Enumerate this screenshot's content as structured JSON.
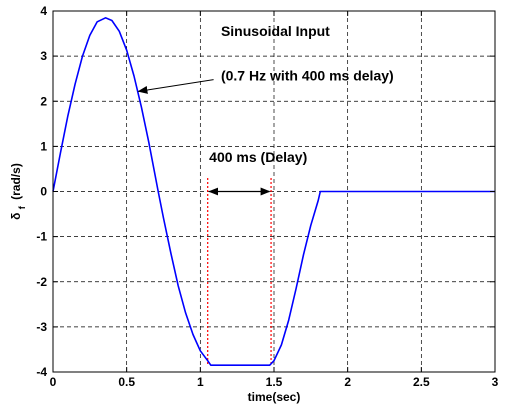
{
  "chart_data": {
    "type": "line",
    "title": "",
    "xlabel": "time(sec)",
    "ylabel_main": "δ",
    "ylabel_sub": "f",
    "ylabel_unit": "(rad/s)",
    "xlim": [
      0,
      3
    ],
    "ylim": [
      -4,
      4
    ],
    "x_ticks": [
      0,
      0.5,
      1,
      1.5,
      2,
      2.5,
      3
    ],
    "x_tick_labels": [
      "0",
      "0.5",
      "1",
      "1.5",
      "2",
      "2.5",
      "3"
    ],
    "y_ticks": [
      -4,
      -3,
      -2,
      -1,
      0,
      1,
      2,
      3,
      4
    ],
    "y_tick_labels": [
      "-4",
      "-3",
      "-2",
      "-1",
      "0",
      "1",
      "2",
      "3",
      "4"
    ],
    "grid": true,
    "grid_style": "dashed",
    "series": [
      {
        "color": "#0000ff",
        "x": [
          0,
          0.05,
          0.1,
          0.15,
          0.2,
          0.25,
          0.3,
          0.357,
          0.4,
          0.45,
          0.5,
          0.55,
          0.6,
          0.65,
          0.714,
          0.75,
          0.8,
          0.85,
          0.9,
          0.95,
          1.0,
          1.05,
          1.071,
          1.1,
          1.2,
          1.3,
          1.4,
          1.471,
          1.5,
          1.55,
          1.6,
          1.65,
          1.7,
          1.75,
          1.8,
          1.814,
          2.0,
          2.5,
          3.0
        ],
        "y": [
          0,
          0.85,
          1.66,
          2.38,
          3.0,
          3.46,
          3.76,
          3.85,
          3.79,
          3.55,
          3.13,
          2.56,
          1.87,
          1.09,
          0,
          -0.59,
          -1.37,
          -2.09,
          -2.69,
          -3.17,
          -3.53,
          -3.75,
          -3.85,
          -3.85,
          -3.85,
          -3.85,
          -3.85,
          -3.85,
          -3.75,
          -3.4,
          -2.85,
          -2.15,
          -1.4,
          -0.75,
          -0.2,
          0,
          0,
          0,
          0
        ]
      }
    ],
    "markers": {
      "color": "#ff0000",
      "style": "dotted",
      "x": [
        1.05,
        1.48
      ],
      "y_top": 0.3,
      "y_bottom": -3.85
    },
    "annotations": [
      {
        "text": "Sinusoidal Input"
      },
      {
        "text": "(0.7 Hz with 400 ms delay)"
      },
      {
        "text": "400 ms (Delay)"
      }
    ]
  }
}
